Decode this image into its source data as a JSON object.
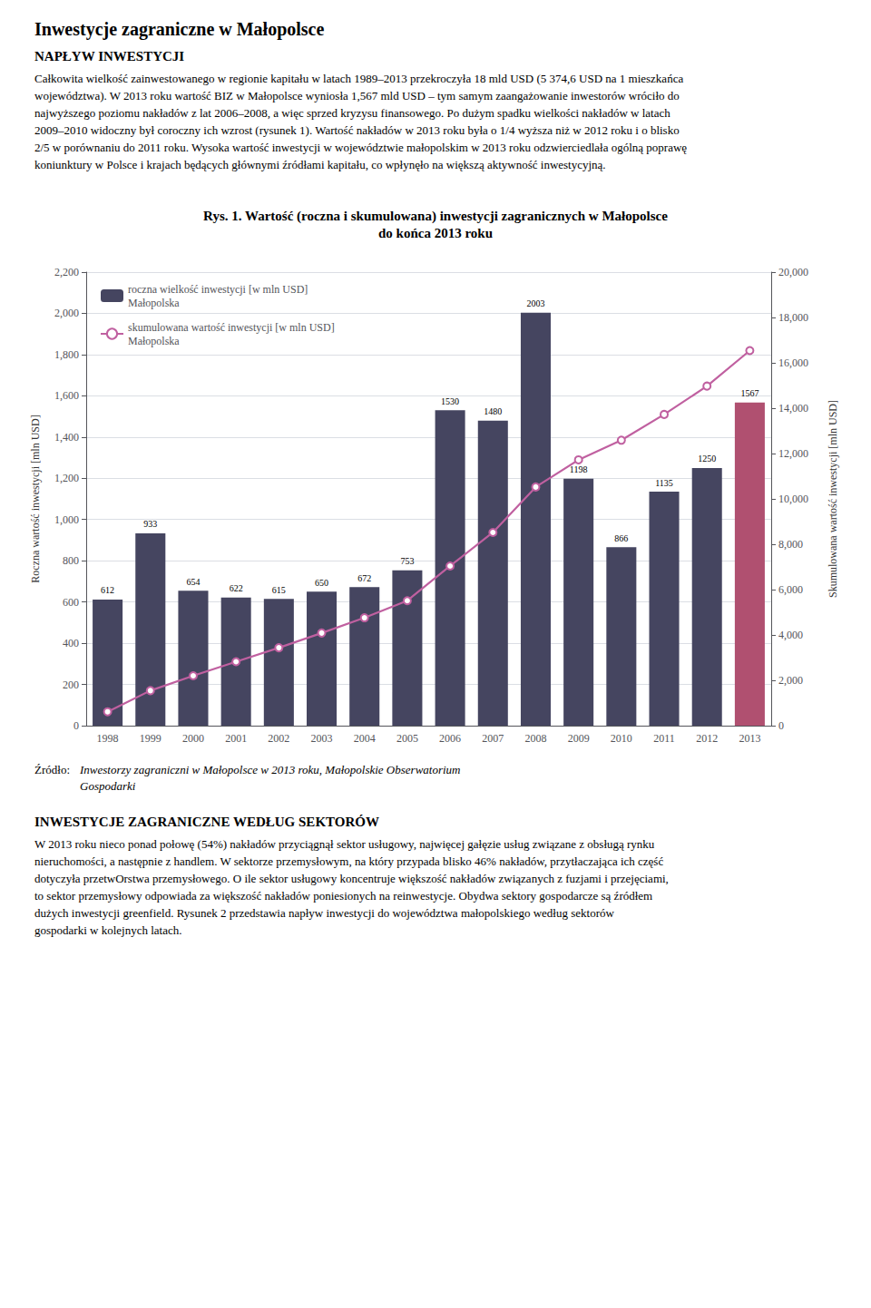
{
  "chart_data": {
    "type": "bar",
    "title": "Rys. 1. Wartość (roczna i skumulowana) inwestycji zagranicznych w Małopolsce",
    "subtitle": "do końca 2013 roku",
    "categories": [
      "1998",
      "1999",
      "2000",
      "2001",
      "2002",
      "2003",
      "2004",
      "2005",
      "2006",
      "2007",
      "2008",
      "2009",
      "2010",
      "2011",
      "2012",
      "2013"
    ],
    "series": [
      {
        "name": "roczna wielkość inwestycji [w mln USD]\nMałopolska",
        "type": "bar",
        "colors": [
          "#454560",
          "#454560",
          "#454560",
          "#454560",
          "#454560",
          "#454560",
          "#454560",
          "#454560",
          "#454560",
          "#454560",
          "#454560",
          "#454560",
          "#454560",
          "#454560",
          "#454560",
          "#b05070"
        ],
        "data_labels": true,
        "values": [
          612,
          933,
          654,
          622,
          615,
          650,
          672,
          753,
          1530,
          1480,
          2003,
          1198,
          866,
          1135,
          1250,
          1567
        ]
      },
      {
        "name": "skumulowana wartość inwestycji [w mln USD]\nMałopolska",
        "type": "line",
        "axis": "y2",
        "color": "#c060a0",
        "marker": "circle",
        "line_style": "solid",
        "values": [
          612,
          1545,
          2199,
          2821,
          3436,
          4086,
          4758,
          5511,
          7041,
          8521,
          10524,
          11722,
          12588,
          13723,
          14973,
          16540
        ]
      }
    ],
    "y_label": "Roczna wartość inwestycji [mln USD]",
    "y2_label": "Skumulowana wartość inwestycji [mln USD]",
    "ylim": [
      0,
      2200
    ],
    "yticks": [
      0,
      200,
      400,
      600,
      800,
      1000,
      1200,
      1400,
      1600,
      1800,
      2000,
      2200
    ],
    "y2lim": [
      0,
      20000
    ],
    "y2ticks": [
      0,
      2000,
      4000,
      6000,
      8000,
      10000,
      12000,
      14000,
      16000,
      18000,
      20000
    ],
    "grid": true,
    "legend": "upper left",
    "annotations": [
      "Inwestycje zagraniczne w Małopolsce",
      "NAPŁYW INWESTYCJI",
      "Całkowita wielkość zainwestowanego w regionie kapitału w latach 1989–2013 przekroczyła 18 mld USD (5 374,6 USD na 1 mieszkańca",
      "województwa). W 2013 roku wartość BIZ w Małopolsce wyniosła 1,567 mld USD – tym samym zaangażowanie inwestorów wróciło do",
      "najwyższego poziomu nakładów z lat 2006–2008, a więc sprzed kryzysu finansowego. Po dużym spadku wielkości nakładów w latach",
      "2009–2010 widoczny był coroczny ich wzrost (rysunek 1). Wartość nakładów w 2013 roku była o 1/4 wyższa niż w 2012 roku i o blisko",
      "2/5 w porównaniu do 2011 roku. Wysoka wartość inwestycji w województwie małopolskim w 2013 roku odzwierciedlała ogólną poprawę",
      "koniunktury w Polsce i krajach będących głównymi źródłami kapitału, co wpłynęło na większą aktywność inwestycyjną.",
      "Źródło:",
      "Inwestorzy zagraniczni w Małopolsce w 2013 roku, Małopolskie Obserwatorium",
      "Gospodarki",
      "INWESTYCJE ZAGRANICZNE WEDŁUG SEKTORÓW",
      "W 2013 roku nieco ponad połowę (54%) nakładów przyciągnął sektor usługowy, najwięcej gałęzie usług związane z obsługą rynku",
      "nieruchomości, a następnie z handlem. W sektorze przemysłowym, na który przypada blisko 46% nakładów, przytłaczająca ich część",
      "dotyczyła przetwOrstwa przemysłowego. O ile sektor usługowy koncentruje większość nakładów związanych z fuzjami i przejęciami,",
      "to sektor przemysłowy odpowiada za większość nakładów poniesionych na reinwestycje. Obydwa sektory gospodarcze są źródłem",
      "dużych inwestycji greenfield. Rysunek 2 przedstawia napływ inwestycji do województwa małopolskiego według sektorów",
      "gospodarki w kolejnych latach."
    ]
  }
}
